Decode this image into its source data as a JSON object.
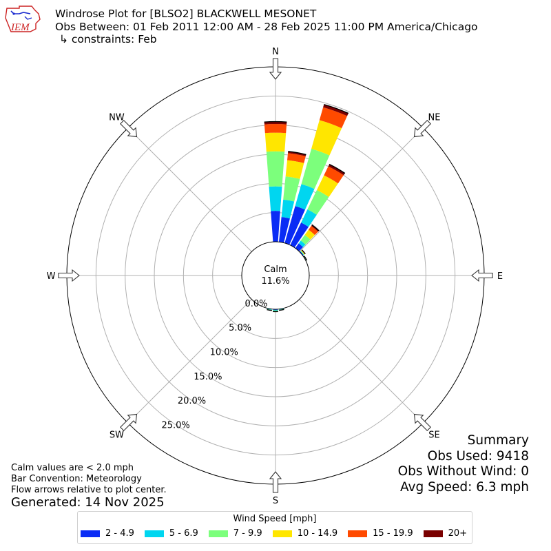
{
  "header": {
    "logo_text": "IEM",
    "title_line1": "Windrose Plot for [BLSO2] BLACKWELL MESONET",
    "title_line2": "Obs Between: 01 Feb 2011 12:00 AM - 28 Feb 2025 11:00 PM America/Chicago",
    "title_line3": "↳ constraints: Feb"
  },
  "summary": {
    "heading": "Summary",
    "obs_used": "Obs Used: 9418",
    "obs_without_wind": "Obs Without Wind: 0",
    "avg_speed": "Avg Speed: 6.3 mph"
  },
  "notes": {
    "calm_note": "Calm values are < 2.0 mph",
    "bar_convention": "Bar Convention: Meteorology",
    "flow_arrows": "Flow arrows relative to plot center.",
    "generated": "Generated: 14 Nov 2025"
  },
  "chart_data": {
    "type": "windrose",
    "calm_label": "Calm",
    "calm_value": "11.6%",
    "calm_percent": 11.6,
    "radial_ticks": [
      {
        "value": 0,
        "label": "0.0%"
      },
      {
        "value": 5,
        "label": "5.0%"
      },
      {
        "value": 10,
        "label": "10.0%"
      },
      {
        "value": 15,
        "label": "15.0%"
      },
      {
        "value": 20,
        "label": "20.0%"
      },
      {
        "value": 25,
        "label": "25.0%"
      }
    ],
    "rmax": 30,
    "directions": [
      {
        "label": "N",
        "angle": 0
      },
      {
        "label": "NE",
        "angle": 45
      },
      {
        "label": "E",
        "angle": 90
      },
      {
        "label": "SE",
        "angle": 135
      },
      {
        "label": "S",
        "angle": 180
      },
      {
        "label": "SW",
        "angle": 225
      },
      {
        "label": "W",
        "angle": 270
      },
      {
        "label": "NW",
        "angle": 315
      }
    ],
    "legend_title": "Wind Speed [mph]",
    "bins": [
      {
        "label": "2 - 4.9",
        "color": "#0a2cf5"
      },
      {
        "label": "5 - 6.9",
        "color": "#00d6f0"
      },
      {
        "label": "7 - 9.9",
        "color": "#7cff7c"
      },
      {
        "label": "10 - 14.9",
        "color": "#ffe600"
      },
      {
        "label": "15 - 19.9",
        "color": "#ff4a00"
      },
      {
        "label": "20+",
        "color": "#7a0000"
      }
    ],
    "sectors": [
      {
        "dir": 0,
        "cumulative": [
          5.3,
          9.5,
          15.5,
          18.7,
          20.2,
          20.6
        ]
      },
      {
        "dir": 10,
        "cumulative": [
          4.3,
          7.3,
          11.3,
          14.1,
          15.3,
          15.6
        ]
      },
      {
        "dir": 20,
        "cumulative": [
          6.6,
          10.5,
          16.8,
          21.9,
          24.2,
          24.7
        ]
      },
      {
        "dir": 30,
        "cumulative": [
          4.3,
          6.8,
          10.5,
          13.3,
          15.0,
          15.4
        ]
      },
      {
        "dir": 40,
        "cumulative": [
          1.0,
          1.6,
          2.8,
          3.9,
          4.7,
          4.9
        ]
      },
      {
        "dir": 50,
        "cumulative": [
          0.15,
          0.22,
          0.32,
          0.42,
          0.5,
          0.52
        ]
      },
      {
        "dir": 60,
        "cumulative": [
          0.05,
          0.08,
          0.11,
          0.14,
          0.16,
          0.17
        ]
      },
      {
        "dir": 170,
        "cumulative": [
          0.05,
          0.12,
          0.18,
          0.21,
          0.22,
          0.22
        ]
      },
      {
        "dir": 180,
        "cumulative": [
          0.1,
          0.22,
          0.32,
          0.37,
          0.39,
          0.4
        ]
      },
      {
        "dir": 190,
        "cumulative": [
          0.06,
          0.14,
          0.2,
          0.24,
          0.25,
          0.25
        ]
      }
    ]
  }
}
